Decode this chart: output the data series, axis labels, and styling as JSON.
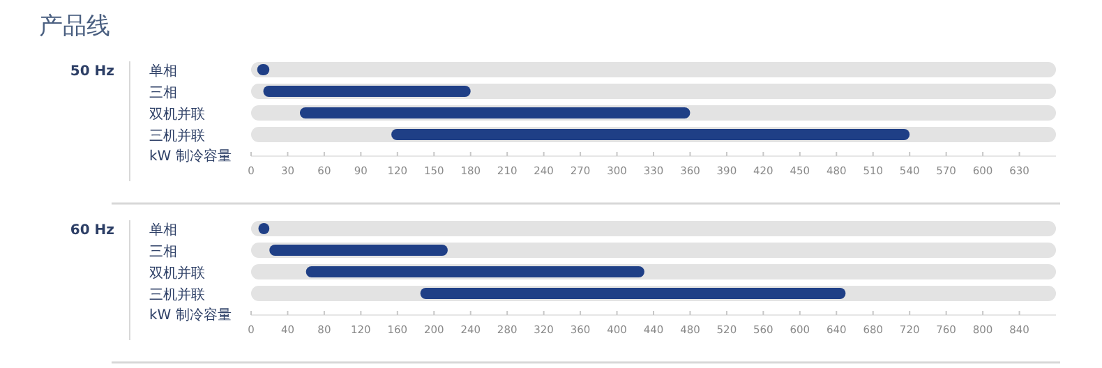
{
  "chart_data": [
    {
      "type": "bar",
      "orientation": "horizontal",
      "title": "产品线",
      "subtitle": "50 Hz",
      "xlabel": "kW 制冷容量",
      "categories": [
        "单相",
        "三相",
        "双机并联",
        "三机并联"
      ],
      "series": [
        {
          "color": "#e3e3e3",
          "base": [
            0,
            0,
            0,
            0
          ],
          "values": [
            660,
            660,
            660,
            660
          ]
        },
        {
          "color": "#1f3f86",
          "base": [
            5,
            10,
            40,
            115
          ],
          "values": [
            10,
            170,
            320,
            425
          ]
        }
      ],
      "xlim": [
        0,
        660
      ],
      "xticks": [
        0,
        30,
        60,
        90,
        120,
        150,
        180,
        210,
        240,
        270,
        300,
        330,
        360,
        390,
        420,
        450,
        480,
        510,
        540,
        570,
        600,
        630
      ]
    },
    {
      "type": "bar",
      "orientation": "horizontal",
      "subtitle": "60 Hz",
      "xlabel": "kW 制冷容量",
      "categories": [
        "单相",
        "三相",
        "双机并联",
        "三机并联"
      ],
      "series": [
        {
          "color": "#e3e3e3",
          "base": [
            0,
            0,
            0,
            0
          ],
          "values": [
            880,
            880,
            880,
            880
          ]
        },
        {
          "color": "#1f3f86",
          "base": [
            8,
            20,
            60,
            185
          ],
          "values": [
            12,
            195,
            370,
            465
          ]
        }
      ],
      "xlim": [
        0,
        880
      ],
      "xticks": [
        0,
        40,
        80,
        120,
        160,
        200,
        240,
        280,
        320,
        360,
        400,
        440,
        480,
        520,
        560,
        600,
        640,
        680,
        720,
        760,
        800,
        840
      ]
    }
  ]
}
